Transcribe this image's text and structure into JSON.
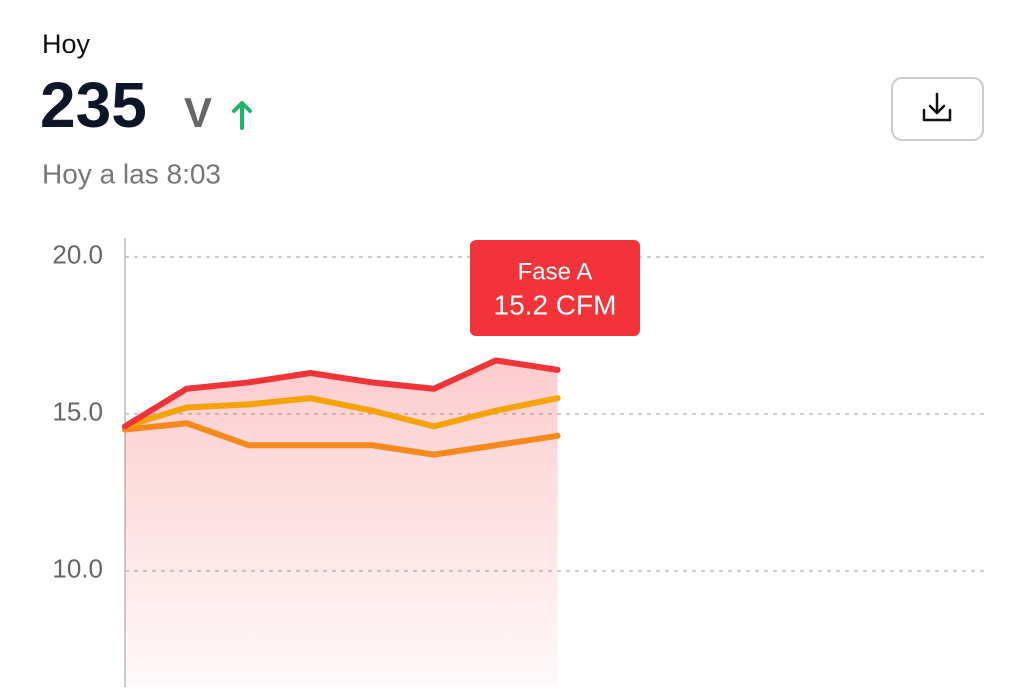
{
  "header": {
    "title": "Hoy",
    "value": "235",
    "unit": "V",
    "timestamp": "Hoy a las 8:03"
  },
  "chart_data": {
    "type": "line",
    "categories": [
      null,
      null,
      null,
      null,
      null,
      null,
      null,
      null
    ],
    "series": [
      {
        "name": "Fase A",
        "color": "#f2333a",
        "values": [
          14.6,
          15.8,
          16.0,
          16.3,
          16.0,
          15.8,
          16.7,
          16.4
        ]
      },
      {
        "color": "#f5a300",
        "values": [
          14.6,
          15.2,
          15.3,
          15.5,
          15.1,
          14.6,
          15.1,
          15.5
        ]
      },
      {
        "color": "#f7891c",
        "values": [
          14.5,
          14.7,
          14.0,
          14.0,
          14.0,
          13.7,
          14.0,
          14.3
        ]
      }
    ],
    "ylim": [
      6.3,
      20.6
    ],
    "yticks": [
      {
        "value": 10,
        "label": "10.0"
      },
      {
        "value": 15,
        "label": "15.0"
      },
      {
        "value": 20,
        "label": "20.0"
      }
    ],
    "grid": true,
    "tooltip": {
      "value_label": "15.2 CFM"
    }
  }
}
